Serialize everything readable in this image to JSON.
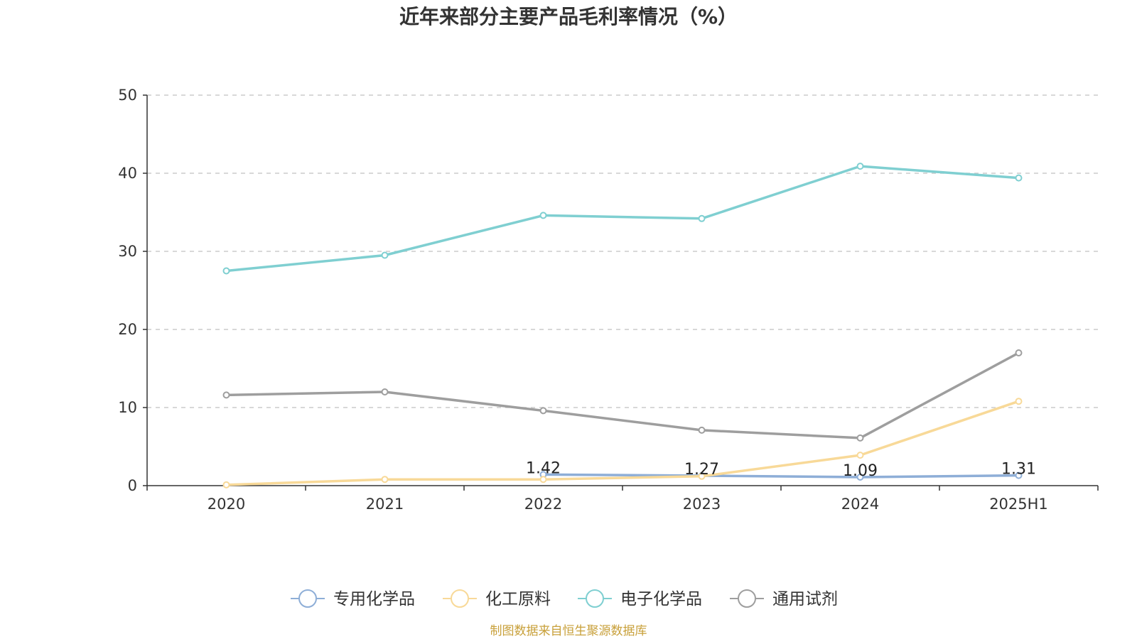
{
  "colors": {
    "zhuanyong": "#8eaed7",
    "huagong": "#f8d998",
    "dianzi": "#7fcfd1",
    "tongyong": "#9e9e9e",
    "source": "#c8a03a"
  },
  "chart_data": {
    "type": "line",
    "title": "近年来部分主要产品毛利率情况（%）",
    "xlabel": "",
    "ylabel": "",
    "categories": [
      "2020",
      "2021",
      "2022",
      "2023",
      "2024",
      "2025H1"
    ],
    "ylim": [
      0,
      50
    ],
    "yticks": [
      "0",
      "10",
      "20",
      "30",
      "40",
      "50"
    ],
    "grid": true,
    "legend_position": "bottom",
    "series": [
      {
        "name": "专用化学品",
        "color_key": "zhuanyong",
        "values": [
          null,
          null,
          1.42,
          1.27,
          1.09,
          1.31
        ],
        "labels": [
          "",
          "",
          "1.42",
          "1.27",
          "1.09",
          "1.31"
        ]
      },
      {
        "name": "化工原料",
        "color_key": "huagong",
        "values": [
          0.1,
          0.8,
          0.8,
          1.2,
          3.9,
          10.8
        ]
      },
      {
        "name": "电子化学品",
        "color_key": "dianzi",
        "values": [
          27.5,
          29.5,
          34.6,
          34.2,
          40.9,
          39.4
        ]
      },
      {
        "name": "通用试剂",
        "color_key": "tongyong",
        "values": [
          11.6,
          12.0,
          9.6,
          7.1,
          6.1,
          17.0
        ]
      }
    ]
  },
  "footer": {
    "source": "制图数据来自恒生聚源数据库"
  }
}
